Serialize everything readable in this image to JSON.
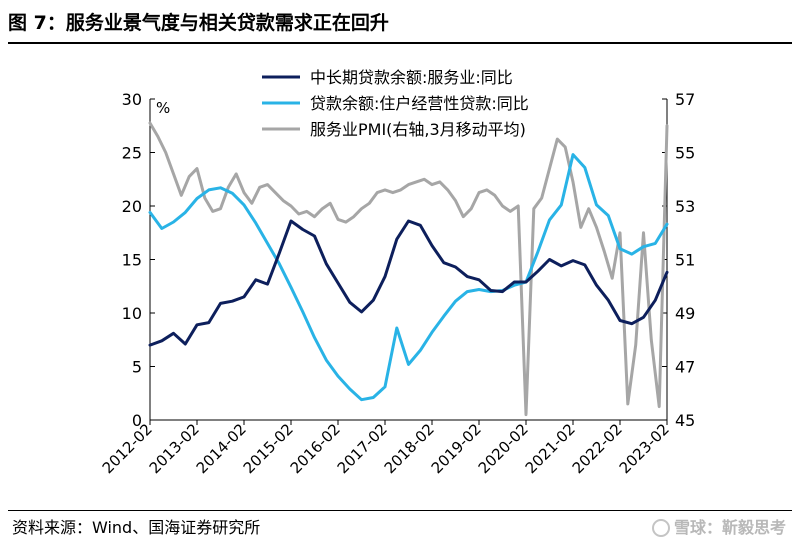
{
  "header": {
    "title": "图 7：服务业景气度与相关贷款需求正在回升"
  },
  "footer": {
    "source": "资料来源：Wind、国海证券研究所",
    "watermark": "雪球：靳毅思考"
  },
  "chart_data": {
    "type": "line",
    "left_unit": "%",
    "xlabel": "",
    "ylabel": "",
    "ylim_left": [
      0,
      30
    ],
    "ylim_right": [
      45,
      57
    ],
    "left_ticks": [
      0,
      5,
      10,
      15,
      20,
      25,
      30
    ],
    "right_ticks": [
      45,
      47,
      49,
      51,
      53,
      55,
      57
    ],
    "x_tick_labels": [
      "2012-02",
      "2013-02",
      "2014-02",
      "2015-02",
      "2016-02",
      "2017-02",
      "2018-02",
      "2019-02",
      "2020-02",
      "2021-02",
      "2022-02",
      "2023-02"
    ],
    "grid": false,
    "legend_position": "top-center",
    "series": [
      {
        "name": "中长期贷款余额:服务业:同比",
        "axis": "left",
        "color": "#0d1f5c",
        "x": [
          "2012-02",
          "2012-05",
          "2012-08",
          "2012-11",
          "2013-02",
          "2013-05",
          "2013-08",
          "2013-11",
          "2014-02",
          "2014-05",
          "2014-08",
          "2014-11",
          "2015-02",
          "2015-05",
          "2015-08",
          "2015-11",
          "2016-02",
          "2016-05",
          "2016-08",
          "2016-11",
          "2017-02",
          "2017-05",
          "2017-08",
          "2017-11",
          "2018-02",
          "2018-05",
          "2018-08",
          "2018-11",
          "2019-02",
          "2019-05",
          "2019-08",
          "2019-11",
          "2020-02",
          "2020-05",
          "2020-08",
          "2020-11",
          "2021-02",
          "2021-05",
          "2021-08",
          "2021-11",
          "2022-02",
          "2022-05",
          "2022-08",
          "2022-11",
          "2023-02"
        ],
        "values": [
          7.0,
          7.4,
          8.1,
          7.1,
          8.9,
          9.1,
          10.9,
          11.1,
          11.5,
          13.1,
          12.7,
          15.6,
          18.6,
          17.8,
          17.2,
          14.6,
          12.8,
          11.0,
          10.1,
          11.2,
          13.4,
          16.9,
          18.6,
          18.2,
          16.3,
          14.7,
          14.3,
          13.4,
          13.1,
          12.1,
          12.0,
          12.9,
          12.9,
          13.9,
          15.0,
          14.4,
          14.9,
          14.5,
          12.6,
          11.2,
          9.3,
          9.0,
          9.6,
          11.2,
          13.8
        ]
      },
      {
        "name": "贷款余额:住户经营性贷款:同比",
        "axis": "left",
        "color": "#29b3e6",
        "x": [
          "2012-02",
          "2012-05",
          "2012-08",
          "2012-11",
          "2013-02",
          "2013-05",
          "2013-08",
          "2013-11",
          "2014-02",
          "2014-05",
          "2014-08",
          "2014-11",
          "2015-02",
          "2015-05",
          "2015-08",
          "2015-11",
          "2016-02",
          "2016-05",
          "2016-08",
          "2016-11",
          "2017-02",
          "2017-05",
          "2017-08",
          "2017-11",
          "2018-02",
          "2018-05",
          "2018-08",
          "2018-11",
          "2019-02",
          "2019-05",
          "2019-08",
          "2019-11",
          "2020-02",
          "2020-05",
          "2020-08",
          "2020-11",
          "2021-02",
          "2021-05",
          "2021-08",
          "2021-11",
          "2022-02",
          "2022-05",
          "2022-08",
          "2022-11",
          "2023-02"
        ],
        "values": [
          19.4,
          17.9,
          18.5,
          19.4,
          20.7,
          21.5,
          21.7,
          21.2,
          20.1,
          18.4,
          16.5,
          14.6,
          12.4,
          10.1,
          7.7,
          5.6,
          4.1,
          2.9,
          1.9,
          2.1,
          3.1,
          8.6,
          5.2,
          6.5,
          8.2,
          9.7,
          11.1,
          12.0,
          12.2,
          12.0,
          12.1,
          12.6,
          12.9,
          15.7,
          18.7,
          20.1,
          24.8,
          23.6,
          20.1,
          19.1,
          16.0,
          15.5,
          16.2,
          16.5,
          18.3
        ]
      },
      {
        "name": "服务业PMI(右轴,3月移动平均)",
        "axis": "right",
        "color": "#a6a6a6",
        "x": [
          "2012-02",
          "2012-04",
          "2012-06",
          "2012-08",
          "2012-10",
          "2012-12",
          "2013-02",
          "2013-04",
          "2013-06",
          "2013-08",
          "2013-10",
          "2013-12",
          "2014-02",
          "2014-04",
          "2014-06",
          "2014-08",
          "2014-10",
          "2014-12",
          "2015-02",
          "2015-04",
          "2015-06",
          "2015-08",
          "2015-10",
          "2015-12",
          "2016-02",
          "2016-04",
          "2016-06",
          "2016-08",
          "2016-10",
          "2016-12",
          "2017-02",
          "2017-04",
          "2017-06",
          "2017-08",
          "2017-10",
          "2017-12",
          "2018-02",
          "2018-04",
          "2018-06",
          "2018-08",
          "2018-10",
          "2018-12",
          "2019-02",
          "2019-04",
          "2019-06",
          "2019-08",
          "2019-10",
          "2019-12",
          "2020-02",
          "2020-04",
          "2020-06",
          "2020-08",
          "2020-10",
          "2020-12",
          "2021-02",
          "2021-04",
          "2021-06",
          "2021-08",
          "2021-10",
          "2021-12",
          "2022-02",
          "2022-04",
          "2022-06",
          "2022-08",
          "2022-10",
          "2022-12",
          "2023-02"
        ],
        "values": [
          56.1,
          55.6,
          55.0,
          54.2,
          53.4,
          54.1,
          54.4,
          53.3,
          52.8,
          52.9,
          53.7,
          54.2,
          53.5,
          53.1,
          53.7,
          53.8,
          53.5,
          53.2,
          53.0,
          52.7,
          52.8,
          52.6,
          52.9,
          53.1,
          52.5,
          52.4,
          52.6,
          52.9,
          53.1,
          53.5,
          53.6,
          53.5,
          53.6,
          53.8,
          53.9,
          54.0,
          53.8,
          53.9,
          53.6,
          53.2,
          52.6,
          52.9,
          53.5,
          53.6,
          53.4,
          53.0,
          52.8,
          53.0,
          45.2,
          52.9,
          53.3,
          54.4,
          55.5,
          55.2,
          53.9,
          52.2,
          52.9,
          52.2,
          51.3,
          50.3,
          52.0,
          45.6,
          47.8,
          52.0,
          48.0,
          45.5,
          56.0
        ]
      }
    ]
  }
}
